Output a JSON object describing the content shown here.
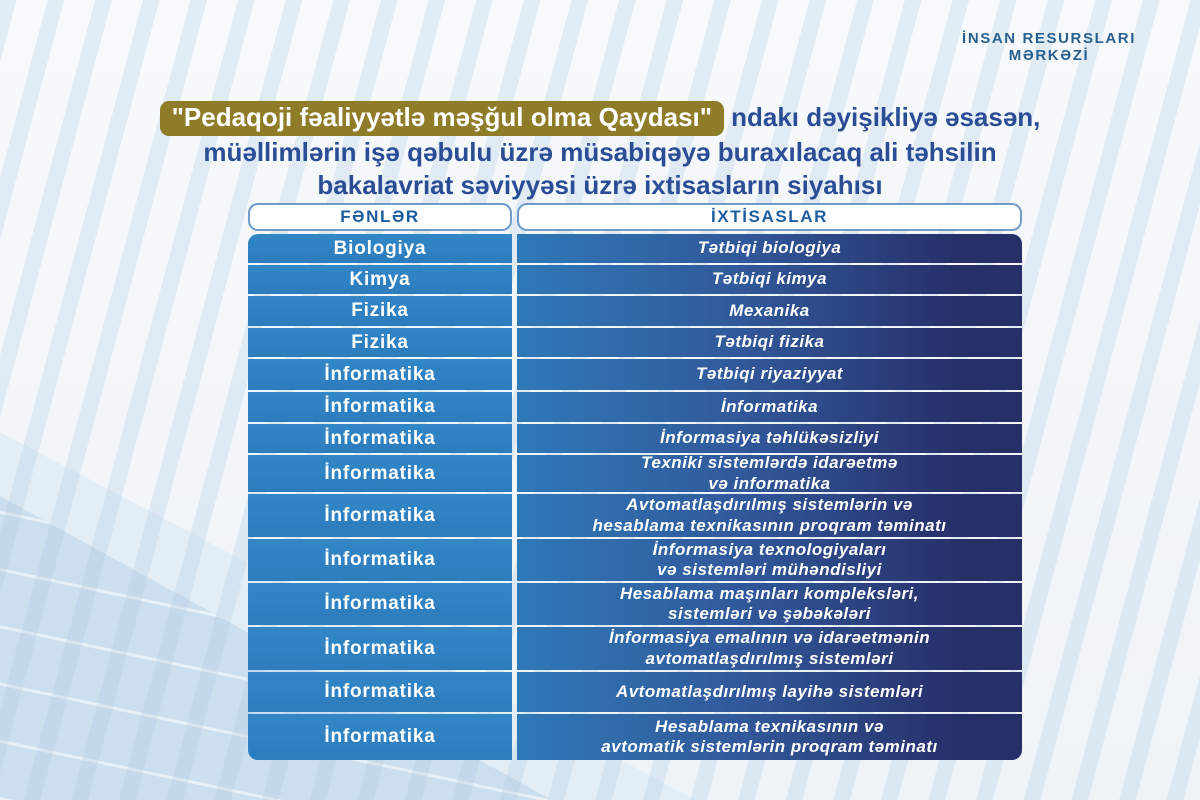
{
  "logo": {
    "line1": "İNSAN RESURSLARI",
    "line2": "MƏRKƏZİ"
  },
  "title": {
    "highlight": "\"Pedaqoji fəaliyyətlə məşğul olma Qaydası\"",
    "rest_line1": "ndakı dəyişikliyə əsasən,",
    "line2": "müəllimlərin işə qəbulu üzrə müsabiqəyə buraxılacaq ali təhsilin",
    "line3": "bakalavriat səviyyəsi üzrə ixtisasların siyahısı"
  },
  "table": {
    "columns": [
      "FƏNLƏR",
      "İXTİSASLAR"
    ],
    "rows": [
      {
        "subject": "Biologiya",
        "specialization": "Tətbiqi biologiya"
      },
      {
        "subject": "Kimya",
        "specialization": "Tətbiqi kimya"
      },
      {
        "subject": "Fizika",
        "specialization": "Mexanika"
      },
      {
        "subject": "Fizika",
        "specialization": "Tətbiqi fizika"
      },
      {
        "subject": "İnformatika",
        "specialization": "Tətbiqi riyaziyyat"
      },
      {
        "subject": "İnformatika",
        "specialization": "İnformatika"
      },
      {
        "subject": "İnformatika",
        "specialization": "İnformasiya təhlükəsizliyi"
      },
      {
        "subject": "İnformatika",
        "specialization": "Texniki sistemlərdə idarəetmə\nvə informatika"
      },
      {
        "subject": "İnformatika",
        "specialization": "Avtomatlaşdırılmış sistemlərin və\nhesablama texnikasının proqram təminatı"
      },
      {
        "subject": "İnformatika",
        "specialization": "İnformasiya texnologiyaları\nvə sistemləri mühəndisliyi"
      },
      {
        "subject": "İnformatika",
        "specialization": "Hesablama maşınları kompleksləri,\nsistemləri və şəbəkələri"
      },
      {
        "subject": "İnformatika",
        "specialization": "İnformasiya emalının və idarəetmənin\navtomatlaşdırılmış sistemləri"
      },
      {
        "subject": "İnformatika",
        "specialization": "Avtomatlaşdırılmış layihə sistemləri"
      },
      {
        "subject": "İnformatika",
        "specialization": "Hesablama texnikasının və\navtomatik sistemlərin proqram təminatı"
      }
    ]
  },
  "colors": {
    "accent_gold": "#8e7c28",
    "title_blue": "#2b4d95",
    "logo_blue": "#2a608f",
    "header_text_blue": "#1d5c9e",
    "header_border": "#6f9cc6",
    "cell_blue": "#2d7cbd",
    "cell_blue_light": "#3287c6",
    "cell_gradient_start": "#2f79b7",
    "cell_gradient_end": "#272f68",
    "band_blue": "#cbdfee"
  }
}
